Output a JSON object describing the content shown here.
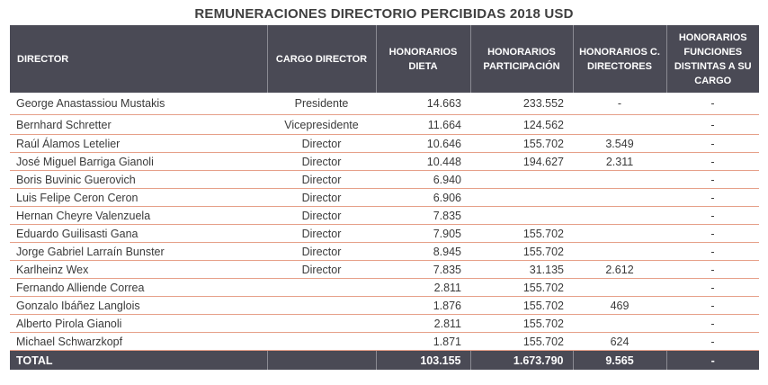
{
  "title": "REMUNERACIONES DIRECTORIO PERCIBIDAS 2018 USD",
  "headers": {
    "director": "DIRECTOR",
    "cargo": "CARGO DIRECTOR",
    "dieta": "HONORARIOS DIETA",
    "participacion": "HONORARIOS PARTICIPACIÓN",
    "comite": "HONORARIOS C. DIRECTORES",
    "funciones": "HONORARIOS FUNCIONES DISTINTAS A SU CARGO"
  },
  "rows": [
    {
      "name": "George Anastassiou Mustakis",
      "cargo": "Presidente",
      "dieta": "14.663",
      "participacion": "233.552",
      "comite": "-",
      "funciones": "-"
    },
    {
      "name": "Bernhard Schretter",
      "cargo": "Vicepresidente",
      "dieta": "11.664",
      "participacion": "124.562",
      "comite": "",
      "funciones": "-"
    },
    {
      "name": "Raúl Álamos Letelier",
      "cargo": "Director",
      "dieta": "10.646",
      "participacion": "155.702",
      "comite": "3.549",
      "funciones": "-"
    },
    {
      "name": "José Miguel Barriga Gianoli",
      "cargo": "Director",
      "dieta": "10.448",
      "participacion": "194.627",
      "comite": "2.311",
      "funciones": "-"
    },
    {
      "name": "Boris Buvinic Guerovich",
      "cargo": "Director",
      "dieta": "6.940",
      "participacion": "",
      "comite": "",
      "funciones": "-"
    },
    {
      "name": "Luis Felipe Ceron Ceron",
      "cargo": "Director",
      "dieta": "6.906",
      "participacion": "",
      "comite": "",
      "funciones": "-"
    },
    {
      "name": "Hernan Cheyre Valenzuela",
      "cargo": "Director",
      "dieta": "7.835",
      "participacion": "",
      "comite": "",
      "funciones": "-"
    },
    {
      "name": "Eduardo Guilisasti Gana",
      "cargo": "Director",
      "dieta": "7.905",
      "participacion": "155.702",
      "comite": "",
      "funciones": "-"
    },
    {
      "name": "Jorge Gabriel Larraín Bunster",
      "cargo": "Director",
      "dieta": "8.945",
      "participacion": "155.702",
      "comite": "",
      "funciones": "-"
    },
    {
      "name": "Karlheinz  Wex",
      "cargo": "Director",
      "dieta": "7.835",
      "participacion": "31.135",
      "comite": "2.612",
      "funciones": "-"
    },
    {
      "name": "Fernando Alliende Correa",
      "cargo": "",
      "dieta": "2.811",
      "participacion": "155.702",
      "comite": "",
      "funciones": "-"
    },
    {
      "name": "Gonzalo Ibáñez Langlois",
      "cargo": "",
      "dieta": "1.876",
      "participacion": "155.702",
      "comite": "469",
      "funciones": "-"
    },
    {
      "name": "Alberto Pirola Gianoli",
      "cargo": "",
      "dieta": "2.811",
      "participacion": "155.702",
      "comite": "",
      "funciones": "-"
    },
    {
      "name": "Michael Schwarzkopf",
      "cargo": "",
      "dieta": "1.871",
      "participacion": "155.702",
      "comite": "624",
      "funciones": "-"
    }
  ],
  "total": {
    "label": "TOTAL",
    "cargo": "",
    "dieta": "103.155",
    "participacion": "1.673.790",
    "comite": "9.565",
    "funciones": "-"
  }
}
